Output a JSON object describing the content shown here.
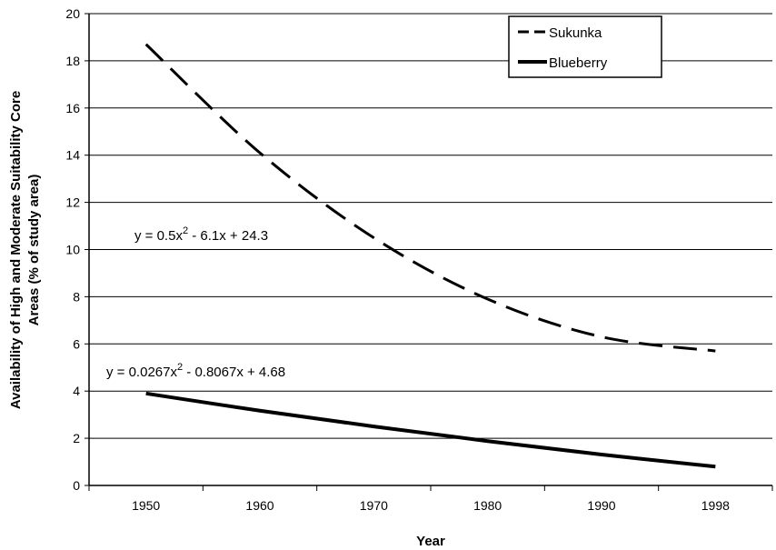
{
  "chart_data": {
    "type": "line",
    "x_label": "Year",
    "y_label": [
      "Availability of High and Moderate Suitability Core",
      "Areas (% of study area)"
    ],
    "categories": [
      "1950",
      "1960",
      "1970",
      "1980",
      "1990",
      "1998"
    ],
    "series": [
      {
        "name": "Sukunka",
        "color": "#000000",
        "dash": true,
        "values": [
          18.7,
          14.1,
          10.5,
          7.9,
          6.3,
          5.7
        ]
      },
      {
        "name": "Blueberry",
        "color": "#000000",
        "dash": false,
        "values": [
          3.9,
          3.17,
          2.5,
          1.88,
          1.31,
          0.8
        ]
      }
    ],
    "ylim": [
      0,
      20
    ],
    "yticks": [
      0,
      2,
      4,
      6,
      8,
      10,
      12,
      14,
      16,
      18,
      20
    ],
    "grid": true,
    "legend": "top-right",
    "annotations": [
      {
        "parts": [
          "y = 0.5x",
          "2",
          " - 6.1x + 24.3"
        ]
      },
      {
        "parts": [
          "y = 0.0267x",
          "2",
          " - 0.8067x + 4.68"
        ]
      }
    ]
  }
}
